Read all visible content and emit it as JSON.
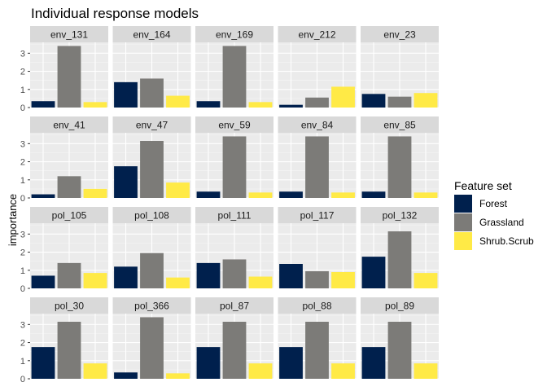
{
  "chart_data": {
    "type": "bar",
    "title": "Individual response models",
    "xlabel": "",
    "ylabel": "importance",
    "ylim": [
      0,
      3.6
    ],
    "yticks": [
      0,
      1,
      2,
      3
    ],
    "grid": true,
    "legend_title": "Feature set",
    "legend_position": "right",
    "series": [
      {
        "name": "Forest",
        "color": "#00204D"
      },
      {
        "name": "Grassland",
        "color": "#7C7B78"
      },
      {
        "name": "Shrub.Scrub",
        "color": "#FFEA46"
      }
    ],
    "facets": [
      {
        "label": "env_131",
        "values": [
          0.35,
          3.4,
          0.3
        ]
      },
      {
        "label": "env_164",
        "values": [
          1.4,
          1.6,
          0.65
        ]
      },
      {
        "label": "env_169",
        "values": [
          0.35,
          3.4,
          0.3
        ]
      },
      {
        "label": "env_212",
        "values": [
          0.15,
          0.55,
          1.15
        ]
      },
      {
        "label": "env_23",
        "values": [
          0.75,
          0.6,
          0.8
        ]
      },
      {
        "label": "env_41",
        "values": [
          0.2,
          1.2,
          0.5
        ]
      },
      {
        "label": "env_47",
        "values": [
          1.75,
          3.15,
          0.85
        ]
      },
      {
        "label": "env_59",
        "values": [
          0.35,
          3.4,
          0.3
        ]
      },
      {
        "label": "env_84",
        "values": [
          0.35,
          3.4,
          0.3
        ]
      },
      {
        "label": "env_85",
        "values": [
          0.35,
          3.4,
          0.3
        ]
      },
      {
        "label": "pol_105",
        "values": [
          0.7,
          1.4,
          0.85
        ]
      },
      {
        "label": "pol_108",
        "values": [
          1.2,
          1.95,
          0.6
        ]
      },
      {
        "label": "pol_111",
        "values": [
          1.4,
          1.6,
          0.65
        ]
      },
      {
        "label": "pol_117",
        "values": [
          1.35,
          0.95,
          0.9
        ]
      },
      {
        "label": "pol_132",
        "values": [
          1.75,
          3.15,
          0.85
        ]
      },
      {
        "label": "pol_30",
        "values": [
          1.75,
          3.15,
          0.85
        ]
      },
      {
        "label": "pol_366",
        "values": [
          0.35,
          3.4,
          0.3
        ]
      },
      {
        "label": "pol_87",
        "values": [
          1.75,
          3.15,
          0.85
        ]
      },
      {
        "label": "pol_88",
        "values": [
          1.75,
          3.15,
          0.85
        ]
      },
      {
        "label": "pol_89",
        "values": [
          1.75,
          3.15,
          0.85
        ]
      }
    ]
  }
}
